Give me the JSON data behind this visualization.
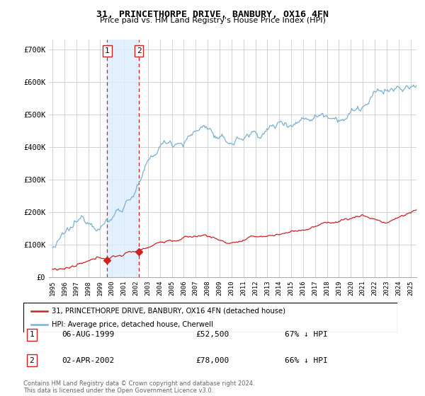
{
  "title": "31, PRINCETHORPE DRIVE, BANBURY, OX16 4FN",
  "subtitle": "Price paid vs. HM Land Registry's House Price Index (HPI)",
  "ylabel_ticks": [
    "£0",
    "£100K",
    "£200K",
    "£300K",
    "£400K",
    "£500K",
    "£600K",
    "£700K"
  ],
  "ytick_values": [
    0,
    100000,
    200000,
    300000,
    400000,
    500000,
    600000,
    700000
  ],
  "ylim": [
    0,
    730000
  ],
  "xlim_start": 1994.7,
  "xlim_end": 2025.5,
  "hpi_color": "#7aafd4",
  "price_color": "#cc2222",
  "shading_color": "#ddeeff",
  "marker1_date": 1999.59,
  "marker2_date": 2002.25,
  "marker1_price": 52500,
  "marker2_price": 78000,
  "transaction_table": [
    {
      "num": "1",
      "date": "06-AUG-1999",
      "price": "£52,500",
      "hpi": "67% ↓ HPI"
    },
    {
      "num": "2",
      "date": "02-APR-2002",
      "price": "£78,000",
      "hpi": "66% ↓ HPI"
    }
  ],
  "legend_entries": [
    "31, PRINCETHORPE DRIVE, BANBURY, OX16 4FN (detached house)",
    "HPI: Average price, detached house, Cherwell"
  ],
  "footnote": "Contains HM Land Registry data © Crown copyright and database right 2024.\nThis data is licensed under the Open Government Licence v3.0."
}
